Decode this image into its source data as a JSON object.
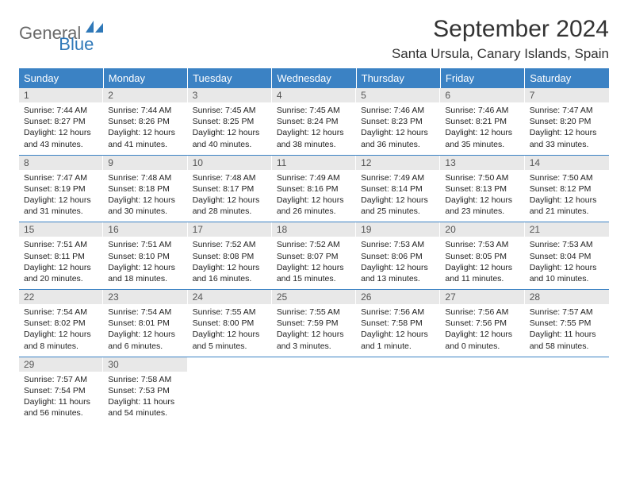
{
  "brand": {
    "part1": "General",
    "part2": "Blue",
    "shape_color": "#2f78b8"
  },
  "title": "September 2024",
  "location": "Santa Ursula, Canary Islands, Spain",
  "colors": {
    "header_bg": "#3b82c4",
    "header_text": "#ffffff",
    "daynum_bg": "#e8e8e8",
    "daynum_text": "#555555",
    "row_border": "#3b82c4"
  },
  "columns": [
    "Sunday",
    "Monday",
    "Tuesday",
    "Wednesday",
    "Thursday",
    "Friday",
    "Saturday"
  ],
  "weeks": [
    [
      {
        "n": "1",
        "sr": "7:44 AM",
        "ss": "8:27 PM",
        "dl": "12 hours and 43 minutes."
      },
      {
        "n": "2",
        "sr": "7:44 AM",
        "ss": "8:26 PM",
        "dl": "12 hours and 41 minutes."
      },
      {
        "n": "3",
        "sr": "7:45 AM",
        "ss": "8:25 PM",
        "dl": "12 hours and 40 minutes."
      },
      {
        "n": "4",
        "sr": "7:45 AM",
        "ss": "8:24 PM",
        "dl": "12 hours and 38 minutes."
      },
      {
        "n": "5",
        "sr": "7:46 AM",
        "ss": "8:23 PM",
        "dl": "12 hours and 36 minutes."
      },
      {
        "n": "6",
        "sr": "7:46 AM",
        "ss": "8:21 PM",
        "dl": "12 hours and 35 minutes."
      },
      {
        "n": "7",
        "sr": "7:47 AM",
        "ss": "8:20 PM",
        "dl": "12 hours and 33 minutes."
      }
    ],
    [
      {
        "n": "8",
        "sr": "7:47 AM",
        "ss": "8:19 PM",
        "dl": "12 hours and 31 minutes."
      },
      {
        "n": "9",
        "sr": "7:48 AM",
        "ss": "8:18 PM",
        "dl": "12 hours and 30 minutes."
      },
      {
        "n": "10",
        "sr": "7:48 AM",
        "ss": "8:17 PM",
        "dl": "12 hours and 28 minutes."
      },
      {
        "n": "11",
        "sr": "7:49 AM",
        "ss": "8:16 PM",
        "dl": "12 hours and 26 minutes."
      },
      {
        "n": "12",
        "sr": "7:49 AM",
        "ss": "8:14 PM",
        "dl": "12 hours and 25 minutes."
      },
      {
        "n": "13",
        "sr": "7:50 AM",
        "ss": "8:13 PM",
        "dl": "12 hours and 23 minutes."
      },
      {
        "n": "14",
        "sr": "7:50 AM",
        "ss": "8:12 PM",
        "dl": "12 hours and 21 minutes."
      }
    ],
    [
      {
        "n": "15",
        "sr": "7:51 AM",
        "ss": "8:11 PM",
        "dl": "12 hours and 20 minutes."
      },
      {
        "n": "16",
        "sr": "7:51 AM",
        "ss": "8:10 PM",
        "dl": "12 hours and 18 minutes."
      },
      {
        "n": "17",
        "sr": "7:52 AM",
        "ss": "8:08 PM",
        "dl": "12 hours and 16 minutes."
      },
      {
        "n": "18",
        "sr": "7:52 AM",
        "ss": "8:07 PM",
        "dl": "12 hours and 15 minutes."
      },
      {
        "n": "19",
        "sr": "7:53 AM",
        "ss": "8:06 PM",
        "dl": "12 hours and 13 minutes."
      },
      {
        "n": "20",
        "sr": "7:53 AM",
        "ss": "8:05 PM",
        "dl": "12 hours and 11 minutes."
      },
      {
        "n": "21",
        "sr": "7:53 AM",
        "ss": "8:04 PM",
        "dl": "12 hours and 10 minutes."
      }
    ],
    [
      {
        "n": "22",
        "sr": "7:54 AM",
        "ss": "8:02 PM",
        "dl": "12 hours and 8 minutes."
      },
      {
        "n": "23",
        "sr": "7:54 AM",
        "ss": "8:01 PM",
        "dl": "12 hours and 6 minutes."
      },
      {
        "n": "24",
        "sr": "7:55 AM",
        "ss": "8:00 PM",
        "dl": "12 hours and 5 minutes."
      },
      {
        "n": "25",
        "sr": "7:55 AM",
        "ss": "7:59 PM",
        "dl": "12 hours and 3 minutes."
      },
      {
        "n": "26",
        "sr": "7:56 AM",
        "ss": "7:58 PM",
        "dl": "12 hours and 1 minute."
      },
      {
        "n": "27",
        "sr": "7:56 AM",
        "ss": "7:56 PM",
        "dl": "12 hours and 0 minutes."
      },
      {
        "n": "28",
        "sr": "7:57 AM",
        "ss": "7:55 PM",
        "dl": "11 hours and 58 minutes."
      }
    ],
    [
      {
        "n": "29",
        "sr": "7:57 AM",
        "ss": "7:54 PM",
        "dl": "11 hours and 56 minutes."
      },
      {
        "n": "30",
        "sr": "7:58 AM",
        "ss": "7:53 PM",
        "dl": "11 hours and 54 minutes."
      },
      null,
      null,
      null,
      null,
      null
    ]
  ],
  "labels": {
    "sunrise": "Sunrise:",
    "sunset": "Sunset:",
    "daylight": "Daylight:"
  }
}
